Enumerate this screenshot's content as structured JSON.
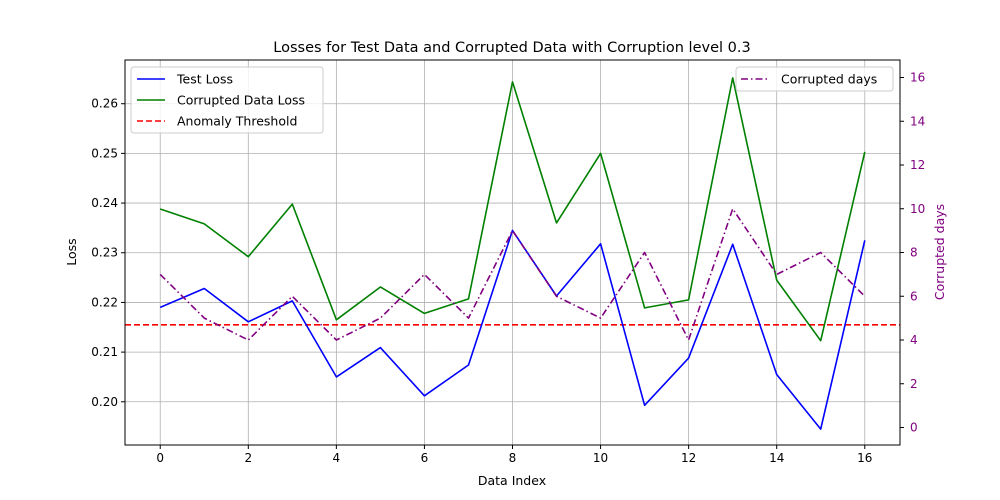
{
  "chart_data": {
    "type": "line",
    "title": "Losses for Test Data and Corrupted Data with Corruption level 0.3",
    "xlabel": "Data Index",
    "ylabel": "Loss",
    "y2label": "Corrupted days",
    "x": [
      0,
      1,
      2,
      3,
      4,
      5,
      6,
      7,
      8,
      9,
      10,
      11,
      12,
      13,
      14,
      15,
      16
    ],
    "xlim": [
      -0.8,
      16.8
    ],
    "ylim": [
      0.1913,
      0.2688
    ],
    "y2lim": [
      -0.8,
      16.8
    ],
    "xticks": [
      0,
      2,
      4,
      6,
      8,
      10,
      12,
      14,
      16
    ],
    "yticks": [
      0.2,
      0.21,
      0.22,
      0.23,
      0.24,
      0.25,
      0.26
    ],
    "ytick_labels": [
      "0.20",
      "0.21",
      "0.22",
      "0.23",
      "0.24",
      "0.25",
      "0.26"
    ],
    "y2ticks": [
      0,
      2,
      4,
      6,
      8,
      10,
      12,
      14,
      16
    ],
    "grid": true,
    "series": [
      {
        "name": "Test Loss",
        "axis": "left",
        "color": "#0000ff",
        "style": "solid",
        "values": [
          0.219,
          0.2228,
          0.2161,
          0.2203,
          0.205,
          0.2109,
          0.2012,
          0.2074,
          0.2345,
          0.2213,
          0.2318,
          0.1993,
          0.2088,
          0.2317,
          0.2055,
          0.1945,
          0.2325
        ]
      },
      {
        "name": "Corrupted Data Loss",
        "axis": "left",
        "color": "#008000",
        "style": "solid",
        "values": [
          0.2388,
          0.2358,
          0.2292,
          0.2398,
          0.2165,
          0.2231,
          0.2178,
          0.2207,
          0.2644,
          0.236,
          0.25,
          0.2189,
          0.2205,
          0.2652,
          0.2245,
          0.2123,
          0.2503
        ]
      },
      {
        "name": "Anomaly Threshold",
        "axis": "left",
        "color": "#ff0000",
        "style": "dashed",
        "kind": "hline",
        "value": 0.2155
      },
      {
        "name": "Corrupted days",
        "axis": "right",
        "color": "#800080",
        "style": "dashdot",
        "values": [
          7,
          5,
          4,
          6,
          4,
          5,
          7,
          5,
          9,
          6,
          5,
          8,
          4,
          10,
          7,
          8,
          6
        ]
      }
    ],
    "legend_left": [
      "Test Loss",
      "Corrupted Data Loss",
      "Anomaly Threshold"
    ],
    "legend_right": [
      "Corrupted days"
    ],
    "legend_left_loc": "upper left",
    "legend_right_loc": "upper right",
    "y2_color": "#800080"
  }
}
